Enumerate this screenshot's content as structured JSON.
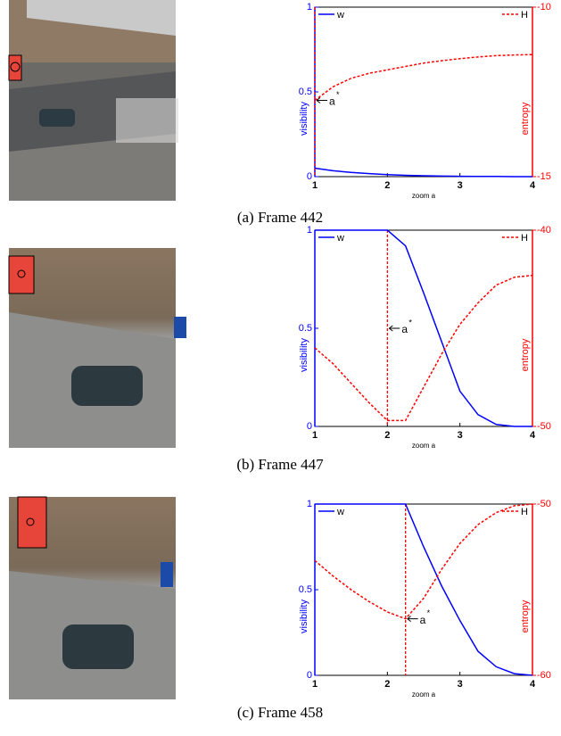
{
  "chart_data": [
    {
      "type": "line",
      "caption": "(a)  Frame 442",
      "x": [
        1,
        1.25,
        1.5,
        1.75,
        2,
        2.25,
        2.5,
        2.75,
        3,
        3.25,
        3.5,
        3.75,
        4
      ],
      "xlim": [
        1,
        4
      ],
      "xticks": [
        1,
        2,
        3,
        4
      ],
      "xlabel": "zoom a",
      "ylim": [
        0,
        1
      ],
      "yticks": [
        0,
        0.5,
        1
      ],
      "ylabel": "visibility",
      "y2lim": [
        -15,
        -10
      ],
      "y2ticks": [
        -15,
        -10
      ],
      "y2label": "entropy",
      "series": [
        {
          "name": "w",
          "color": "#0000ff",
          "values": [
            0.05,
            0.035,
            0.025,
            0.018,
            0.012,
            0.008,
            0.005,
            0.003,
            0.002,
            0.001,
            0.001,
            0,
            0
          ]
        },
        {
          "name": "H",
          "color": "#ff0000",
          "axis": "y2",
          "values": [
            -12.75,
            -12.35,
            -12.1,
            -11.95,
            -11.85,
            -11.75,
            -11.65,
            -11.58,
            -11.52,
            -11.47,
            -11.43,
            -11.41,
            -11.4
          ]
        }
      ],
      "a_star": 1,
      "annotation": {
        "text": "a",
        "sup": "*",
        "y": 0.45
      }
    },
    {
      "type": "line",
      "caption": "(b)  Frame 447",
      "x": [
        1,
        1.25,
        1.5,
        1.75,
        2,
        2.25,
        2.5,
        2.75,
        3,
        3.25,
        3.5,
        3.75,
        4
      ],
      "xlim": [
        1,
        4
      ],
      "xticks": [
        1,
        2,
        3,
        4
      ],
      "xlabel": "zoom a",
      "ylim": [
        0,
        1
      ],
      "yticks": [
        0,
        0.5,
        1
      ],
      "ylabel": "visibility",
      "y2lim": [
        -50,
        -40
      ],
      "y2ticks": [
        -50,
        -40
      ],
      "y2label": "entropy",
      "series": [
        {
          "name": "w",
          "color": "#0000ff",
          "values": [
            1,
            1,
            1,
            1,
            1,
            0.92,
            0.68,
            0.43,
            0.18,
            0.06,
            0.01,
            0,
            0
          ]
        },
        {
          "name": "H",
          "color": "#ff0000",
          "axis": "y2",
          "values": [
            -46,
            -46.8,
            -47.8,
            -48.8,
            -49.7,
            -49.7,
            -48,
            -46.3,
            -44.8,
            -43.7,
            -42.8,
            -42.4,
            -42.3
          ]
        }
      ],
      "a_star": 2,
      "annotation": {
        "text": "a",
        "sup": "*",
        "y": 0.5
      }
    },
    {
      "type": "line",
      "caption": "(c)  Frame 458",
      "x": [
        1,
        1.25,
        1.5,
        1.75,
        2,
        2.25,
        2.5,
        2.75,
        3,
        3.25,
        3.5,
        3.75,
        4
      ],
      "xlim": [
        1,
        4
      ],
      "xticks": [
        1,
        2,
        3,
        4
      ],
      "xlabel": "zoom a",
      "ylim": [
        0,
        1
      ],
      "yticks": [
        0,
        0.5,
        1
      ],
      "ylabel": "visibility",
      "y2lim": [
        -60,
        -50
      ],
      "y2ticks": [
        -60,
        -50
      ],
      "y2label": "entropy",
      "series": [
        {
          "name": "w",
          "color": "#0000ff",
          "values": [
            1,
            1,
            1,
            1,
            1,
            1,
            0.75,
            0.52,
            0.32,
            0.14,
            0.05,
            0.01,
            0
          ]
        },
        {
          "name": "H",
          "color": "#ff0000",
          "axis": "y2",
          "values": [
            -53.3,
            -54.2,
            -55,
            -55.7,
            -56.3,
            -56.7,
            -55.5,
            -53.8,
            -52.3,
            -51.2,
            -50.5,
            -50.1,
            -50
          ]
        }
      ],
      "a_star": 2.25,
      "annotation": {
        "text": "a",
        "sup": "*",
        "y": 0.33
      }
    }
  ]
}
